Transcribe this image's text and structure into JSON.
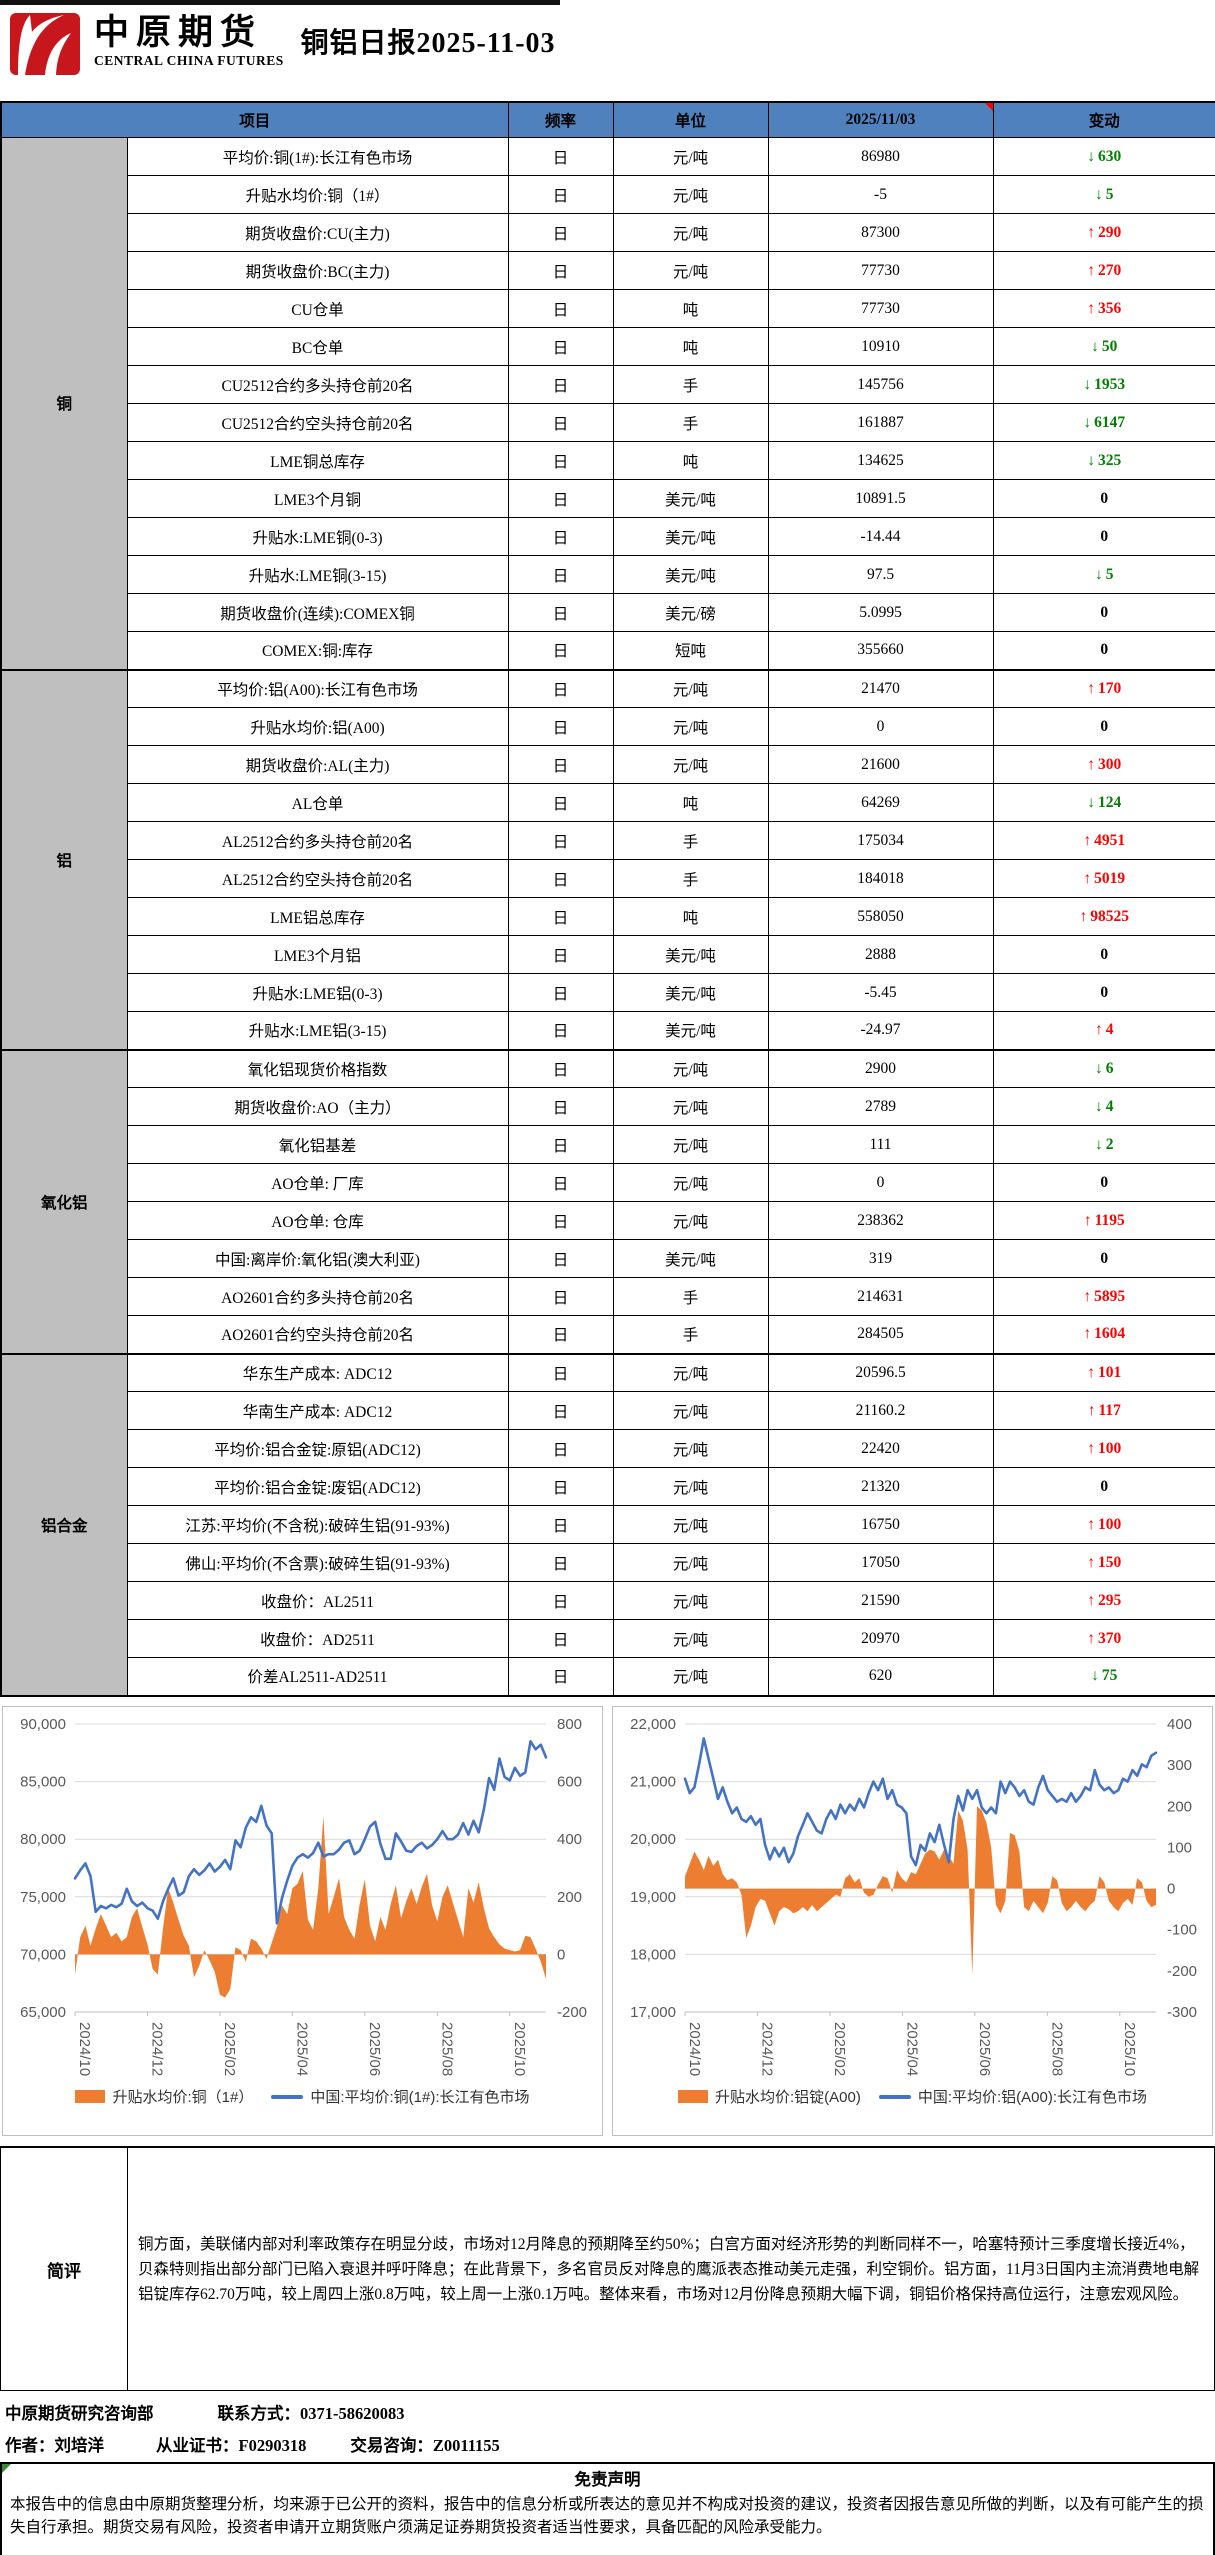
{
  "header": {
    "logo_cn": "中原期货",
    "logo_en": "CENTRAL CHINA FUTURES",
    "title": "铜铝日报2025-11-03"
  },
  "icons": {
    "up_arrow": "↑",
    "down_arrow": "↓"
  },
  "colors": {
    "header_blue": "#4E81BD",
    "group_gray": "#BFBFBF",
    "up_red": "#FF0000",
    "down_green": "#008000",
    "area_orange": "#ED7D31",
    "line_blue": "#4472C4"
  },
  "table": {
    "columns": [
      "项目",
      "频率",
      "单位",
      "2025/11/03",
      "变动"
    ],
    "groups": [
      {
        "label": "铜",
        "rows": [
          {
            "item": "平均价:铜(1#):长江有色市场",
            "freq": "日",
            "unit": "元/吨",
            "value": "86980",
            "change": "630",
            "dir": "down"
          },
          {
            "item": "升贴水均价:铜（1#）",
            "freq": "日",
            "unit": "元/吨",
            "value": "-5",
            "change": "5",
            "dir": "down"
          },
          {
            "item": "期货收盘价:CU(主力)",
            "freq": "日",
            "unit": "元/吨",
            "value": "87300",
            "change": "290",
            "dir": "up"
          },
          {
            "item": "期货收盘价:BC(主力)",
            "freq": "日",
            "unit": "元/吨",
            "value": "77730",
            "change": "270",
            "dir": "up"
          },
          {
            "item": "CU仓单",
            "freq": "日",
            "unit": "吨",
            "value": "77730",
            "change": "356",
            "dir": "up"
          },
          {
            "item": "BC仓单",
            "freq": "日",
            "unit": "吨",
            "value": "10910",
            "change": "50",
            "dir": "down"
          },
          {
            "item": "CU2512合约多头持仓前20名",
            "freq": "日",
            "unit": "手",
            "value": "145756",
            "change": "1953",
            "dir": "down"
          },
          {
            "item": "CU2512合约空头持仓前20名",
            "freq": "日",
            "unit": "手",
            "value": "161887",
            "change": "6147",
            "dir": "down"
          },
          {
            "item": "LME铜总库存",
            "freq": "日",
            "unit": "吨",
            "value": "134625",
            "change": "325",
            "dir": "down"
          },
          {
            "item": "LME3个月铜",
            "freq": "日",
            "unit": "美元/吨",
            "value": "10891.5",
            "change": "0",
            "dir": "flat"
          },
          {
            "item": "升贴水:LME铜(0-3)",
            "freq": "日",
            "unit": "美元/吨",
            "value": "-14.44",
            "change": "0",
            "dir": "flat"
          },
          {
            "item": "升贴水:LME铜(3-15)",
            "freq": "日",
            "unit": "美元/吨",
            "value": "97.5",
            "change": "5",
            "dir": "down"
          },
          {
            "item": "期货收盘价(连续):COMEX铜",
            "freq": "日",
            "unit": "美元/磅",
            "value": "5.0995",
            "change": "0",
            "dir": "flat"
          },
          {
            "item": "COMEX:铜:库存",
            "freq": "日",
            "unit": "短吨",
            "value": "355660",
            "change": "0",
            "dir": "flat"
          }
        ]
      },
      {
        "label": "铝",
        "rows": [
          {
            "item": "平均价:铝(A00):长江有色市场",
            "freq": "日",
            "unit": "元/吨",
            "value": "21470",
            "change": "170",
            "dir": "up"
          },
          {
            "item": "升贴水均价:铝(A00)",
            "freq": "日",
            "unit": "元/吨",
            "value": "0",
            "change": "0",
            "dir": "flat"
          },
          {
            "item": "期货收盘价:AL(主力)",
            "freq": "日",
            "unit": "元/吨",
            "value": "21600",
            "change": "300",
            "dir": "up"
          },
          {
            "item": "AL仓单",
            "freq": "日",
            "unit": "吨",
            "value": "64269",
            "change": "124",
            "dir": "down"
          },
          {
            "item": "AL2512合约多头持仓前20名",
            "freq": "日",
            "unit": "手",
            "value": "175034",
            "change": "4951",
            "dir": "up"
          },
          {
            "item": "AL2512合约空头持仓前20名",
            "freq": "日",
            "unit": "手",
            "value": "184018",
            "change": "5019",
            "dir": "up"
          },
          {
            "item": "LME铝总库存",
            "freq": "日",
            "unit": "吨",
            "value": "558050",
            "change": "98525",
            "dir": "up"
          },
          {
            "item": "LME3个月铝",
            "freq": "日",
            "unit": "美元/吨",
            "value": "2888",
            "change": "0",
            "dir": "flat"
          },
          {
            "item": "升贴水:LME铝(0-3)",
            "freq": "日",
            "unit": "美元/吨",
            "value": "-5.45",
            "change": "0",
            "dir": "flat"
          },
          {
            "item": "升贴水:LME铝(3-15)",
            "freq": "日",
            "unit": "美元/吨",
            "value": "-24.97",
            "change": "4",
            "dir": "up"
          }
        ]
      },
      {
        "label": "氧化铝",
        "rows": [
          {
            "item": "氧化铝现货价格指数",
            "freq": "日",
            "unit": "元/吨",
            "value": "2900",
            "change": "6",
            "dir": "down"
          },
          {
            "item": "期货收盘价:AO（主力）",
            "freq": "日",
            "unit": "元/吨",
            "value": "2789",
            "change": "4",
            "dir": "down"
          },
          {
            "item": "氧化铝基差",
            "freq": "日",
            "unit": "元/吨",
            "value": "111",
            "change": "2",
            "dir": "down"
          },
          {
            "item": "AO仓单: 厂库",
            "freq": "日",
            "unit": "元/吨",
            "value": "0",
            "change": "0",
            "dir": "flat"
          },
          {
            "item": "AO仓单: 仓库",
            "freq": "日",
            "unit": "元/吨",
            "value": "238362",
            "change": "1195",
            "dir": "up"
          },
          {
            "item": "中国:离岸价:氧化铝(澳大利亚)",
            "freq": "日",
            "unit": "美元/吨",
            "value": "319",
            "change": "0",
            "dir": "flat"
          },
          {
            "item": "AO2601合约多头持仓前20名",
            "freq": "日",
            "unit": "手",
            "value": "214631",
            "change": "5895",
            "dir": "up"
          },
          {
            "item": "AO2601合约空头持仓前20名",
            "freq": "日",
            "unit": "手",
            "value": "284505",
            "change": "1604",
            "dir": "up"
          }
        ]
      },
      {
        "label": "铝合金",
        "rows": [
          {
            "item": "华东生产成本: ADC12",
            "freq": "日",
            "unit": "元/吨",
            "value": "20596.5",
            "change": "101",
            "dir": "up"
          },
          {
            "item": "华南生产成本: ADC12",
            "freq": "日",
            "unit": "元/吨",
            "value": "21160.2",
            "change": "117",
            "dir": "up"
          },
          {
            "item": "平均价:铝合金锭:原铝(ADC12)",
            "freq": "日",
            "unit": "元/吨",
            "value": "22420",
            "change": "100",
            "dir": "up"
          },
          {
            "item": "平均价:铝合金锭:废铝(ADC12)",
            "freq": "日",
            "unit": "元/吨",
            "value": "21320",
            "change": "0",
            "dir": "flat"
          },
          {
            "item": "江苏:平均价(不含税):破碎生铝(91-93%)",
            "freq": "日",
            "unit": "元/吨",
            "value": "16750",
            "change": "100",
            "dir": "up"
          },
          {
            "item": "佛山:平均价(不含票):破碎生铝(91-93%)",
            "freq": "日",
            "unit": "元/吨",
            "value": "17050",
            "change": "150",
            "dir": "up"
          },
          {
            "item": "收盘价：AL2511",
            "freq": "日",
            "unit": "元/吨",
            "value": "21590",
            "change": "295",
            "dir": "up"
          },
          {
            "item": "收盘价：AD2511",
            "freq": "日",
            "unit": "元/吨",
            "value": "20970",
            "change": "370",
            "dir": "up"
          },
          {
            "item": "价差AL2511-AD2511",
            "freq": "日",
            "unit": "元/吨",
            "value": "620",
            "change": "75",
            "dir": "down"
          }
        ]
      }
    ]
  },
  "chart_data": [
    {
      "type": "line+area",
      "x_ticks": [
        "2024/10",
        "2024/12",
        "2025/02",
        "2025/04",
        "2025/06",
        "2025/08",
        "2025/10"
      ],
      "left_axis": {
        "min": 65000,
        "max": 90000,
        "step": 5000
      },
      "right_axis": {
        "min": -200,
        "max": 800,
        "step": 200
      },
      "grid": true,
      "legend_position": "bottom",
      "series": [
        {
          "name": "升贴水均价:铜（1#）",
          "type": "area",
          "axis": "right",
          "color": "#ED7D31",
          "values": [
            -70,
            60,
            100,
            30,
            90,
            140,
            100,
            60,
            75,
            45,
            60,
            130,
            160,
            95,
            35,
            -50,
            -70,
            90,
            230,
            180,
            120,
            65,
            30,
            -80,
            -40,
            15,
            -20,
            -60,
            -140,
            -150,
            -120,
            25,
            15,
            -25,
            55,
            45,
            20,
            -15,
            40,
            95,
            170,
            140,
            230,
            245,
            290,
            120,
            85,
            230,
            480,
            140,
            200,
            265,
            130,
            85,
            55,
            175,
            260,
            100,
            45,
            130,
            85,
            175,
            240,
            125,
            185,
            230,
            175,
            235,
            280,
            170,
            115,
            200,
            240,
            180,
            120,
            60,
            230,
            180,
            250,
            160,
            90,
            60,
            35,
            20,
            15,
            10,
            15,
            65,
            60,
            20,
            -25,
            -85
          ]
        },
        {
          "name": "中国:平均价:铜(1#):长江有色市场",
          "type": "line",
          "axis": "left",
          "color": "#4472C4",
          "values": [
            76600,
            77300,
            77900,
            76800,
            73700,
            74200,
            74000,
            74300,
            74100,
            74400,
            75700,
            74600,
            74200,
            74500,
            74000,
            73800,
            73100,
            74600,
            75700,
            76600,
            75100,
            75400,
            76800,
            77400,
            76900,
            77300,
            77900,
            77200,
            77600,
            78200,
            77400,
            79900,
            79300,
            81000,
            81900,
            81500,
            82900,
            81200,
            80500,
            72700,
            74900,
            76400,
            77700,
            78400,
            78700,
            78400,
            78800,
            79700,
            78500,
            78700,
            78700,
            79100,
            79700,
            79900,
            78700,
            79000,
            80000,
            81100,
            81500,
            79600,
            78300,
            78300,
            80500,
            79800,
            79000,
            78900,
            79400,
            79700,
            79200,
            79500,
            80000,
            80700,
            80000,
            80000,
            80400,
            81400,
            80400,
            81600,
            80600,
            82600,
            85300,
            84300,
            87000,
            85400,
            85100,
            86200,
            85500,
            85800,
            88500,
            87800,
            88200,
            87100
          ]
        }
      ]
    },
    {
      "type": "line+area",
      "x_ticks": [
        "2024/10",
        "2024/12",
        "2025/02",
        "2025/04",
        "2025/06",
        "2025/08",
        "2025/10"
      ],
      "left_axis": {
        "min": 17000,
        "max": 22000,
        "step": 1000
      },
      "right_axis": {
        "min": -300,
        "max": 400,
        "step": 100
      },
      "grid": true,
      "legend_position": "bottom",
      "series": [
        {
          "name": "升贴水均价:铝锭(A00)",
          "type": "area",
          "axis": "right",
          "color": "#ED7D31",
          "values": [
            30,
            60,
            90,
            70,
            45,
            80,
            55,
            70,
            35,
            20,
            25,
            15,
            -15,
            -120,
            -90,
            -45,
            -25,
            -30,
            -60,
            -90,
            -55,
            -45,
            -50,
            -60,
            -55,
            -45,
            -55,
            -40,
            -55,
            -45,
            -35,
            -25,
            -15,
            -20,
            25,
            35,
            15,
            25,
            -10,
            -20,
            -15,
            10,
            30,
            25,
            -10,
            45,
            25,
            15,
            40,
            35,
            60,
            85,
            95,
            90,
            70,
            95,
            80,
            60,
            190,
            165,
            95,
            -210,
            200,
            190,
            160,
            100,
            -40,
            -60,
            -30,
            135,
            130,
            90,
            -45,
            -55,
            -30,
            -45,
            -60,
            -35,
            30,
            20,
            -35,
            -55,
            -45,
            -30,
            -45,
            -55,
            -40,
            -30,
            30,
            15,
            -30,
            -45,
            -55,
            -35,
            -25,
            -40,
            25,
            15,
            -30,
            -45,
            -40
          ]
        },
        {
          "name": "中国:平均价:铝(A00):长江有色市场",
          "type": "line",
          "axis": "left",
          "color": "#4472C4",
          "values": [
            21050,
            20800,
            20900,
            21300,
            21750,
            21400,
            21050,
            20700,
            20900,
            20650,
            20450,
            20550,
            20350,
            20300,
            20400,
            20250,
            20350,
            19900,
            19650,
            19850,
            19700,
            19850,
            19600,
            19750,
            20050,
            20250,
            20450,
            20300,
            20150,
            20100,
            20350,
            20500,
            20350,
            20600,
            20450,
            20600,
            20500,
            20700,
            20550,
            20800,
            21000,
            20850,
            21050,
            20700,
            20850,
            20600,
            20550,
            20450,
            19700,
            19550,
            19900,
            19800,
            20100,
            19950,
            20250,
            19900,
            19600,
            20350,
            20750,
            20500,
            20850,
            20700,
            20850,
            20550,
            20450,
            20550,
            20450,
            21000,
            20800,
            21000,
            20900,
            20750,
            20850,
            20650,
            20600,
            20900,
            21100,
            20850,
            20750,
            20650,
            20700,
            20650,
            20800,
            20650,
            20750,
            20900,
            20850,
            21200,
            20950,
            20850,
            20900,
            20800,
            20850,
            21050,
            21000,
            21200,
            21100,
            21300,
            21250,
            21450,
            21500
          ]
        }
      ]
    }
  ],
  "comment": {
    "label": "简评",
    "text": "铜方面，美联储内部对利率政策存在明显分歧，市场对12月降息的预期降至约50%；白宫方面对经济形势的判断同样不一，哈塞特预计三季度增长接近4%，贝森特则指出部分部门已陷入衰退并呼吁降息；在此背景下，多名官员反对降息的鹰派表态推动美元走强，利空铜价。铝方面，11月3日国内主流消费地电解铝锭库存62.70万吨，较上周四上涨0.8万吨，较上周一上涨0.1万吨。整体来看，市场对12月份降息预期大幅下调，铜铝价格保持高位运行，注意宏观风险。"
  },
  "contact": {
    "dept": "中原期货研究咨询部",
    "phone": "联系方式：0371-58620083",
    "author": "作者：刘培洋",
    "cert": "从业证书：F0290318",
    "advisory": "交易咨询：Z0011155"
  },
  "disclaimer": {
    "title": "免责声明",
    "text": "本报告中的信息由中原期货整理分析，均来源于已公开的资料，报告中的信息分析或所表达的意见并不构成对投资的建议，投资者因报告意见所做的判断，以及有可能产生的损失自行承担。期货交易有风险，投资者申请开立期货账户须满足证券期货投资者适当性要求，具备匹配的风险承受能力。"
  }
}
